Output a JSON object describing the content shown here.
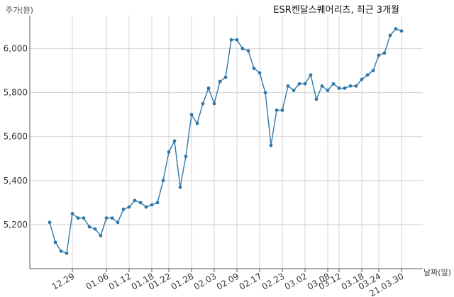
{
  "chart_data": {
    "type": "line",
    "title": "ESR켄달스퀘어리츠, 최근 3개월",
    "ylabel": "주가(원)",
    "xlabel": "날짜(일)",
    "ylim": [
      5000,
      6150
    ],
    "y_ticks": [
      5200,
      5400,
      5600,
      5800,
      6000
    ],
    "y_tick_labels": [
      "5,200",
      "5,400",
      "5,600",
      "5,800",
      "6,000"
    ],
    "x_tick_labels": [
      "12.29",
      "01.06",
      "01.12",
      "01.18",
      "01.22",
      "01.28",
      "02.03",
      "02.09",
      "02.17",
      "02.23",
      "03.02",
      "03.08",
      "03.12",
      "03.18",
      "03.24",
      "21.03.30"
    ],
    "x_tick_index": [
      4,
      10,
      14,
      18,
      21,
      25,
      29,
      33,
      37,
      41,
      45,
      49,
      51,
      55,
      58,
      62
    ],
    "grid": true,
    "legend": "none",
    "series": [
      {
        "color": "#2e78a8",
        "values": [
          5210,
          5120,
          5080,
          5070,
          5250,
          5230,
          5230,
          5190,
          5180,
          5150,
          5230,
          5230,
          5210,
          5270,
          5280,
          5310,
          5300,
          5280,
          5290,
          5300,
          5400,
          5530,
          5580,
          5370,
          5510,
          5700,
          5660,
          5750,
          5820,
          5750,
          5850,
          5870,
          6040,
          6040,
          6000,
          5990,
          5910,
          5890,
          5800,
          5560,
          5720,
          5720,
          5830,
          5810,
          5840,
          5840,
          5880,
          5770,
          5830,
          5810,
          5840,
          5820,
          5820,
          5830,
          5830,
          5860,
          5880,
          5900,
          5970,
          5980,
          6060,
          6090,
          6080
        ]
      }
    ]
  }
}
